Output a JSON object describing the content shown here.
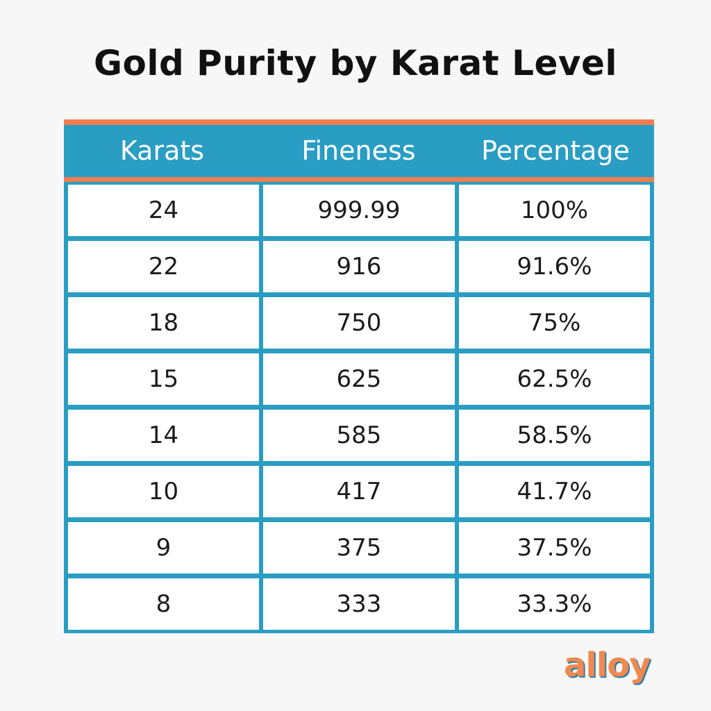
{
  "title": "Gold Purity by Karat Level",
  "colors": {
    "header_bg": "#2a9dc3",
    "accent": "#ee7d4f",
    "cell_bg": "#ffffff",
    "text": "#111111"
  },
  "table": {
    "headers": [
      "Karats",
      "Fineness",
      "Percentage"
    ],
    "rows": [
      [
        "24",
        "999.99",
        "100%"
      ],
      [
        "22",
        "916",
        "91.6%"
      ],
      [
        "18",
        "750",
        "75%"
      ],
      [
        "15",
        "625",
        "62.5%"
      ],
      [
        "14",
        "585",
        "58.5%"
      ],
      [
        "10",
        "417",
        "41.7%"
      ],
      [
        "9",
        "375",
        "37.5%"
      ],
      [
        "8",
        "333",
        "33.3%"
      ]
    ]
  },
  "logo": "alloy"
}
